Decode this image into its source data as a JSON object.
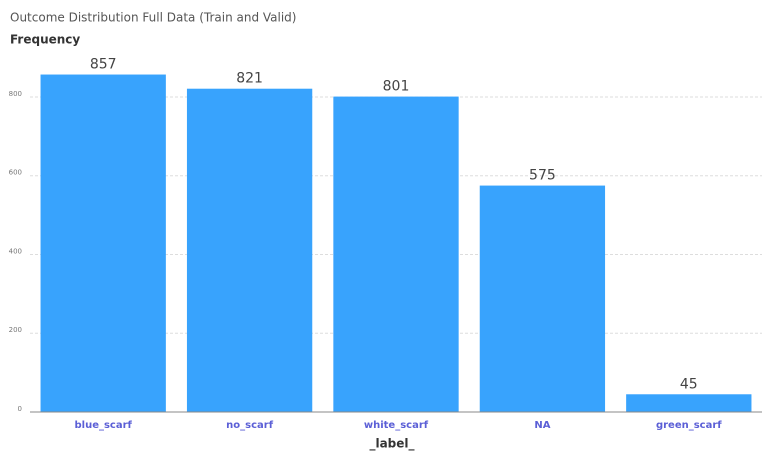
{
  "chart_data": {
    "type": "bar",
    "title": "Outcome Distribution Full Data (Train and Valid)",
    "y_label": "Frequency",
    "x_label": "_label_",
    "categories": [
      "blue_scarf",
      "no_scarf",
      "white_scarf",
      "NA",
      "green_scarf"
    ],
    "values": [
      857,
      821,
      801,
      575,
      45
    ],
    "color": "#38a3fd",
    "ylim": [
      0,
      900
    ],
    "yticks": [
      0,
      200,
      400,
      600,
      800
    ],
    "grid": true
  }
}
